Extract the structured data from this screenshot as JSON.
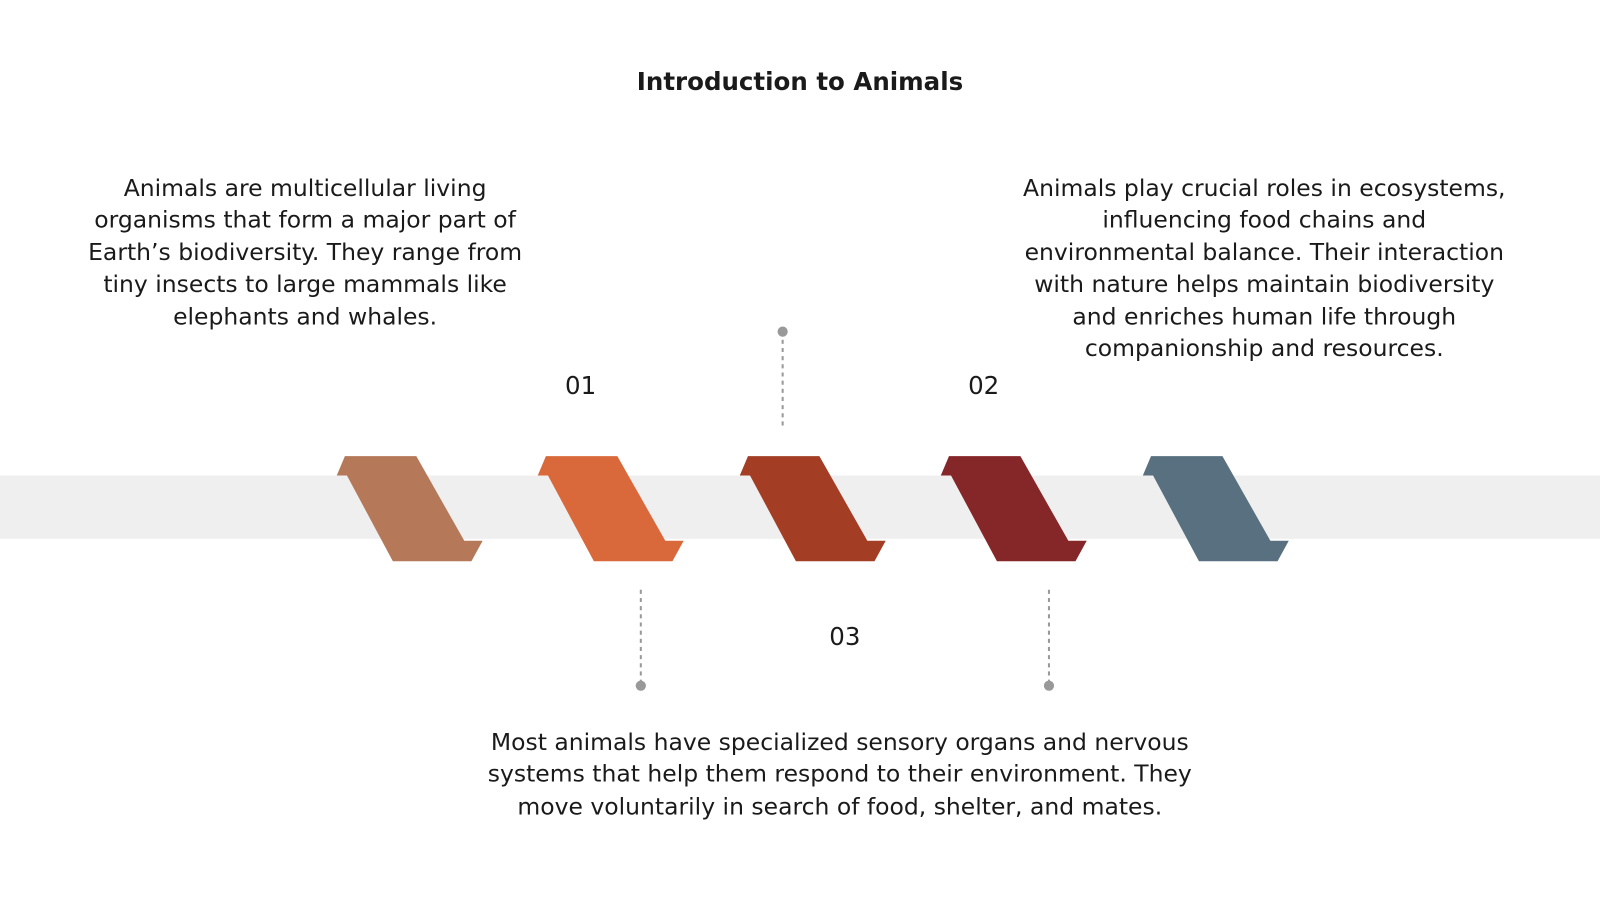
{
  "title": "Introduction to Animals",
  "items": [
    {
      "number": "01",
      "text": "Animals are multicellular living organisms that form a major part of Earth’s biodiversity. They range from tiny insects to large mammals like elephants and whales."
    },
    {
      "number": "02",
      "text": "Animals play crucial roles in ecosystems, influencing food chains and environmental balance. Their interaction with nature helps maintain biodiversity and enriches human life through companionship and resources."
    },
    {
      "number": "03",
      "text": "Most animals have specialized sensory organs and nervous systems that help them respond to their environment. They move voluntarily in search of food, shelter, and mates."
    }
  ]
}
